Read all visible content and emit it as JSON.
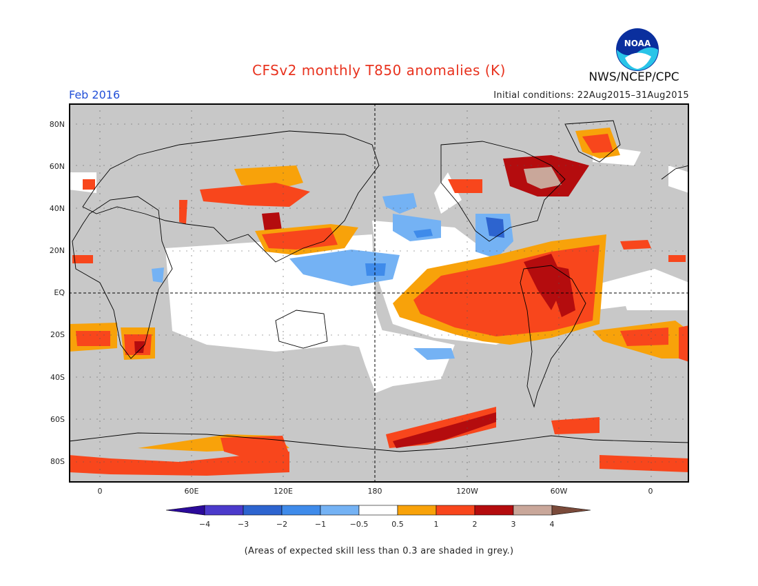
{
  "title": "CFSv2 monthly T850 anomalies (K)",
  "agency": "NWS/NCEP/CPC",
  "logo_text": "NOAA",
  "forecast_month": "Feb 2016",
  "initial_conditions": "Initial conditions: 22Aug2015–31Aug2015",
  "lat_labels": [
    "80N",
    "60N",
    "40N",
    "20N",
    "EQ",
    "20S",
    "40S",
    "60S",
    "80S"
  ],
  "lon_labels": [
    "0",
    "60E",
    "120E",
    "180",
    "120W",
    "60W",
    "0"
  ],
  "colorbar": {
    "labels": [
      "−4",
      "−3",
      "−2",
      "−1",
      "−0.5",
      "0.5",
      "1",
      "2",
      "3",
      "4"
    ],
    "colors": [
      "#2b0a9a",
      "#4b3acb",
      "#2d64cf",
      "#3f8bea",
      "#74b2f4",
      "#ffffff",
      "#f8a20a",
      "#f8461c",
      "#b40c0e",
      "#c9a79a",
      "#7a4a3a"
    ]
  },
  "skill_mask_color": "#c8c8c8",
  "footnote": "(Areas of expected skill less than 0.3 are shaded in grey.)"
}
